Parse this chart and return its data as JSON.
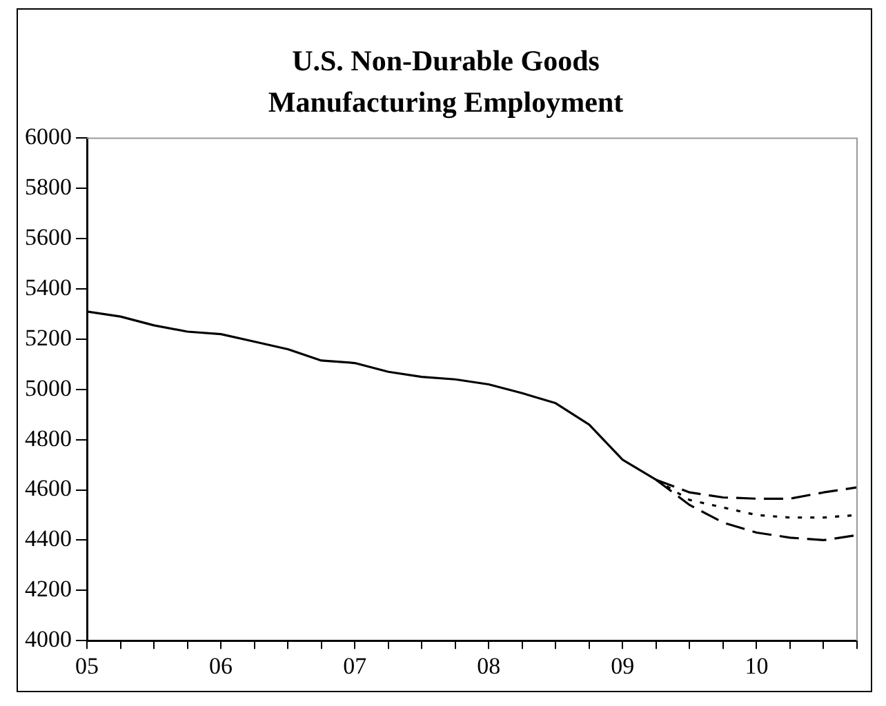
{
  "chart_data": {
    "type": "line",
    "title": "U.S. Non-Durable Goods Manufacturing Employment",
    "xlim": [
      2005,
      2010.75
    ],
    "xticks": [
      {
        "value": 2005,
        "label": "05"
      },
      {
        "value": 2005.25,
        "label": null
      },
      {
        "value": 2005.5,
        "label": null
      },
      {
        "value": 2005.75,
        "label": null
      },
      {
        "value": 2006,
        "label": "06"
      },
      {
        "value": 2006.25,
        "label": null
      },
      {
        "value": 2006.5,
        "label": null
      },
      {
        "value": 2006.75,
        "label": null
      },
      {
        "value": 2007,
        "label": "07"
      },
      {
        "value": 2007.25,
        "label": null
      },
      {
        "value": 2007.5,
        "label": null
      },
      {
        "value": 2007.75,
        "label": null
      },
      {
        "value": 2008,
        "label": "08"
      },
      {
        "value": 2008.25,
        "label": null
      },
      {
        "value": 2008.5,
        "label": null
      },
      {
        "value": 2008.75,
        "label": null
      },
      {
        "value": 2009,
        "label": "09"
      },
      {
        "value": 2009.25,
        "label": null
      },
      {
        "value": 2009.5,
        "label": null
      },
      {
        "value": 2009.75,
        "label": null
      },
      {
        "value": 2010,
        "label": "10"
      },
      {
        "value": 2010.25,
        "label": null
      },
      {
        "value": 2010.5,
        "label": null
      },
      {
        "value": 2010.75,
        "label": null
      }
    ],
    "ylim": [
      4000,
      6000
    ],
    "yticks": [
      4000,
      4200,
      4400,
      4600,
      4800,
      5000,
      5200,
      5400,
      5600,
      5800,
      6000
    ],
    "grid": false,
    "legend": false,
    "series": [
      {
        "color": "#000000",
        "line_style": "solid",
        "x": [
          2005,
          2005.25,
          2005.5,
          2005.75,
          2006,
          2006.25,
          2006.5,
          2006.75,
          2007,
          2007.25,
          2007.5,
          2007.75,
          2008,
          2008.25,
          2008.5,
          2008.75,
          2009,
          2009.25
        ],
        "values": [
          5310,
          5290,
          5255,
          5230,
          5220,
          5190,
          5160,
          5115,
          5105,
          5070,
          5050,
          5040,
          5020,
          4985,
          4945,
          4860,
          4720,
          4640
        ]
      },
      {
        "color": "#000000",
        "line_style": "dashed",
        "x": [
          2009.25,
          2009.5,
          2009.75,
          2010,
          2010.25,
          2010.5,
          2010.75
        ],
        "values": [
          4640,
          4590,
          4570,
          4565,
          4565,
          4590,
          4610
        ]
      },
      {
        "color": "#000000",
        "line_style": "dotted",
        "x": [
          2009.25,
          2009.5,
          2009.75,
          2010,
          2010.25,
          2010.5,
          2010.75
        ],
        "values": [
          4640,
          4560,
          4530,
          4500,
          4490,
          4490,
          4500
        ]
      },
      {
        "color": "#000000",
        "line_style": "dashed",
        "x": [
          2009.25,
          2009.5,
          2009.75,
          2010,
          2010.25,
          2010.5,
          2010.75
        ],
        "values": [
          4640,
          4540,
          4470,
          4430,
          4410,
          4400,
          4420
        ]
      }
    ]
  }
}
